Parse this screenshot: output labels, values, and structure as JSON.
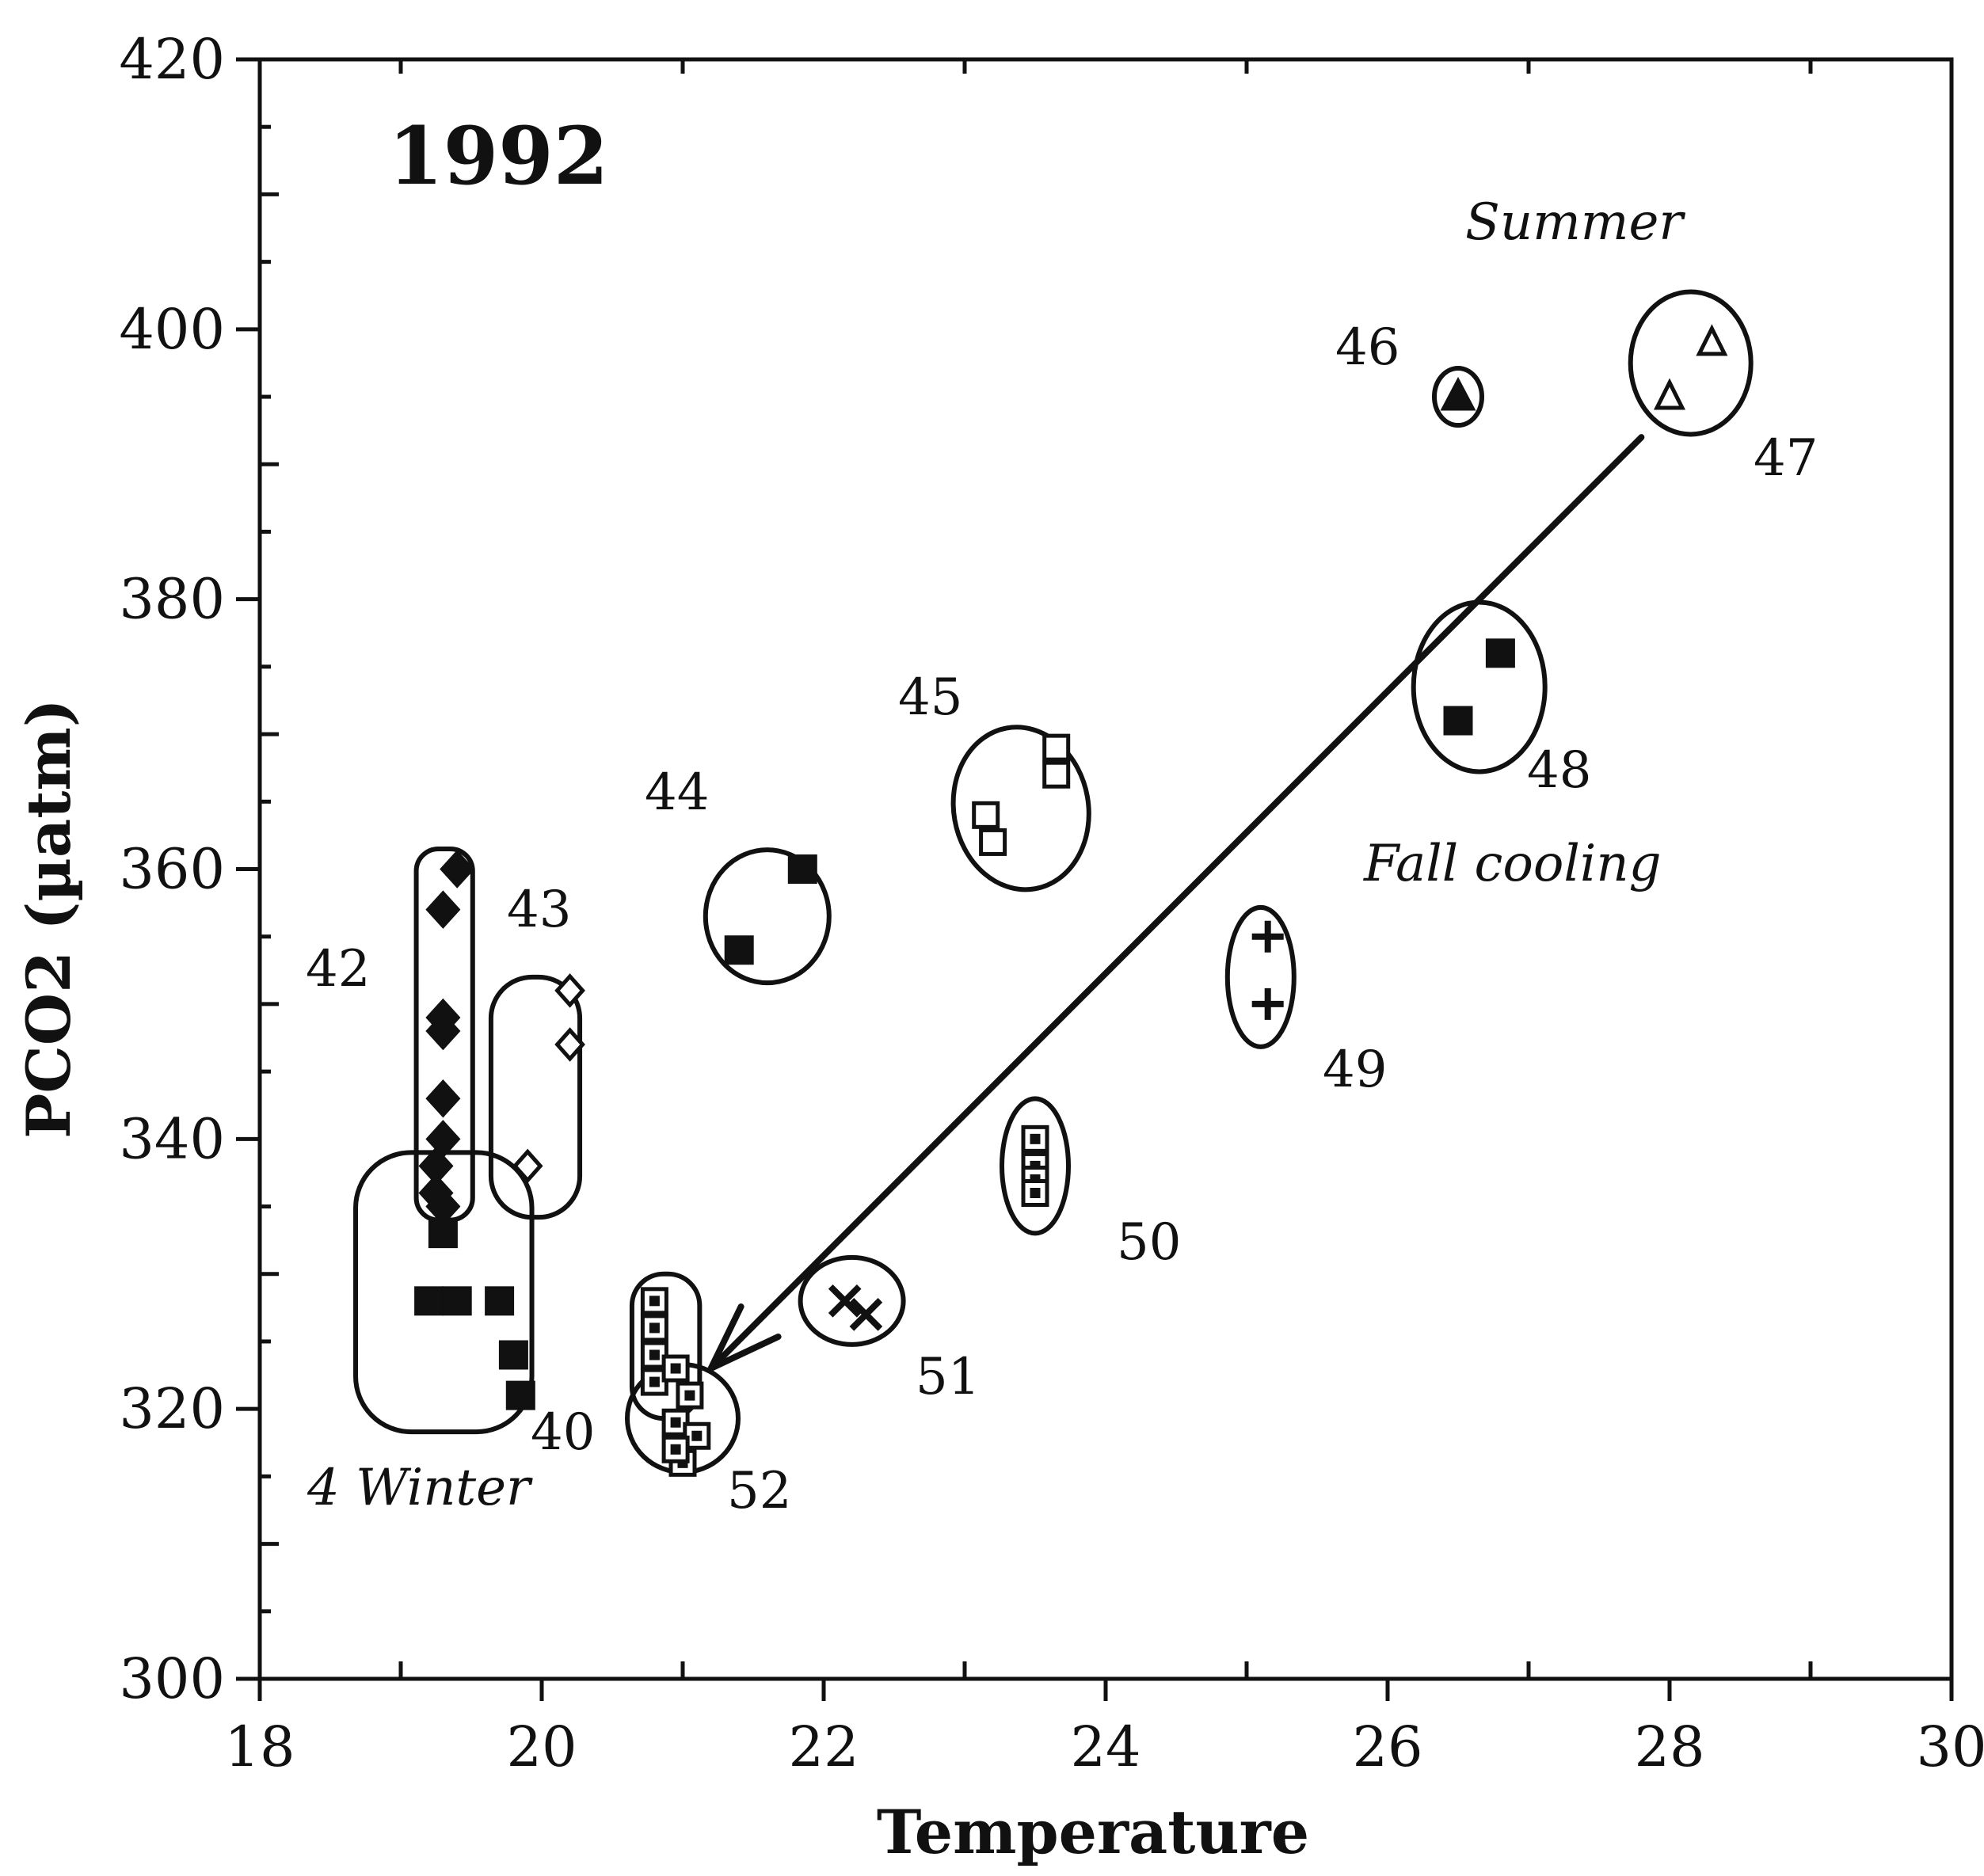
{
  "chart_data": {
    "type": "scatter",
    "title": "1992",
    "xlabel": "Temperature",
    "ylabel": "PCO2  (µatm)",
    "xlim": [
      18,
      30
    ],
    "ylim": [
      300,
      420
    ],
    "x_ticks": [
      "18",
      "20",
      "22",
      "24",
      "26",
      "28",
      "30"
    ],
    "y_ticks": [
      "300",
      "320",
      "340",
      "360",
      "380",
      "400",
      "420"
    ],
    "grid": false,
    "annotations": [
      "Summer",
      "Fall cooling",
      "4 Winter"
    ],
    "groups": [
      {
        "label": "40",
        "marker": "filled-square",
        "points": [
          [
            19.2,
            328
          ],
          [
            19.4,
            328
          ],
          [
            19.7,
            328
          ],
          [
            19.8,
            324
          ],
          [
            19.85,
            321
          ],
          [
            19.3,
            333
          ]
        ]
      },
      {
        "label": "42",
        "marker": "filled-diamond",
        "points": [
          [
            19.4,
            360
          ],
          [
            19.3,
            357
          ],
          [
            19.3,
            349
          ],
          [
            19.3,
            348
          ],
          [
            19.3,
            343
          ],
          [
            19.3,
            340
          ],
          [
            19.25,
            338
          ],
          [
            19.25,
            336
          ],
          [
            19.3,
            335
          ]
        ]
      },
      {
        "label": "43",
        "marker": "open-diamond",
        "points": [
          [
            20.2,
            351
          ],
          [
            20.2,
            347
          ],
          [
            19.9,
            338
          ]
        ]
      },
      {
        "label": "44",
        "marker": "filled-square",
        "points": [
          [
            21.85,
            360
          ],
          [
            21.4,
            354
          ]
        ]
      },
      {
        "label": "45",
        "marker": "open-square",
        "points": [
          [
            23.65,
            369
          ],
          [
            23.65,
            367
          ],
          [
            23.15,
            364
          ],
          [
            23.2,
            362
          ]
        ]
      },
      {
        "label": "46",
        "marker": "filled-triangle",
        "points": [
          [
            26.5,
            395
          ]
        ]
      },
      {
        "label": "47",
        "marker": "open-triangle",
        "points": [
          [
            28.3,
            399
          ],
          [
            28.0,
            395
          ]
        ]
      },
      {
        "label": "48",
        "marker": "filled-square",
        "points": [
          [
            26.8,
            376
          ],
          [
            26.5,
            371
          ]
        ]
      },
      {
        "label": "49",
        "marker": "plus",
        "points": [
          [
            25.15,
            355
          ],
          [
            25.15,
            350
          ]
        ]
      },
      {
        "label": "50",
        "marker": "dotted-square",
        "points": [
          [
            23.5,
            340
          ],
          [
            23.5,
            338
          ],
          [
            23.5,
            337
          ],
          [
            23.5,
            336
          ]
        ]
      },
      {
        "label": "51",
        "marker": "cross",
        "points": [
          [
            22.15,
            328
          ],
          [
            22.3,
            327
          ]
        ]
      },
      {
        "label": "52",
        "marker": "dotted-square",
        "points": [
          [
            20.8,
            328
          ],
          [
            20.8,
            326
          ],
          [
            20.8,
            324
          ],
          [
            20.8,
            322
          ],
          [
            20.95,
            323
          ],
          [
            21.05,
            321
          ],
          [
            20.95,
            319
          ],
          [
            21.1,
            318
          ],
          [
            21.0,
            316
          ],
          [
            20.95,
            317
          ]
        ]
      }
    ],
    "trend_arrow": {
      "from": [
        27.8,
        392
      ],
      "to": [
        21.2,
        323
      ]
    }
  }
}
